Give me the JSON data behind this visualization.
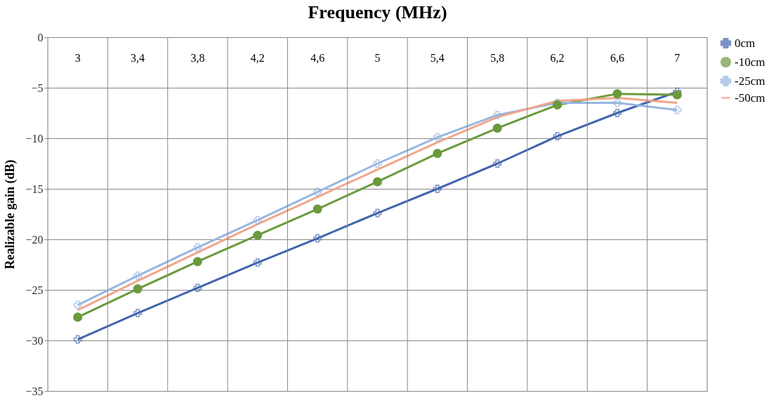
{
  "chart_data": {
    "type": "line",
    "title": "Frequency (MHz)",
    "ylabel": "Realizable gain (dB)",
    "categories": [
      "3",
      "3,4",
      "3,8",
      "4,2",
      "4,6",
      "5",
      "5,4",
      "5,8",
      "6,2",
      "6,6",
      "7"
    ],
    "ylim": [
      -35,
      0
    ],
    "yticks": [
      -35,
      -30,
      -25,
      -20,
      -15,
      -10,
      -5,
      0
    ],
    "grid": true,
    "legend": "right",
    "line_style": "solid",
    "series": [
      {
        "name": "0cm",
        "color": "#4264ad",
        "marker": "cross",
        "values": [
          -29.9,
          -27.3,
          -24.8,
          -22.3,
          -19.9,
          -17.4,
          -15.0,
          -12.5,
          -9.8,
          -7.5,
          -5.4
        ]
      },
      {
        "name": "-10cm",
        "color": "#6a9a3c",
        "marker": "circle",
        "values": [
          -27.7,
          -24.9,
          -22.2,
          -19.6,
          -17.0,
          -14.3,
          -11.5,
          -9.0,
          -6.7,
          -5.6,
          -5.7
        ]
      },
      {
        "name": "-25cm",
        "color": "#97b6e0",
        "marker": "cross",
        "values": [
          -26.5,
          -23.6,
          -20.8,
          -18.1,
          -15.3,
          -12.5,
          -9.9,
          -7.7,
          -6.5,
          -6.5,
          -7.2
        ]
      },
      {
        "name": "-50cm",
        "color": "#f2a58a",
        "marker": "none",
        "values": [
          -27.0,
          -24.1,
          -21.3,
          -18.5,
          -15.8,
          -13.1,
          -10.4,
          -7.9,
          -6.3,
          -6.0,
          -6.5
        ]
      }
    ]
  }
}
